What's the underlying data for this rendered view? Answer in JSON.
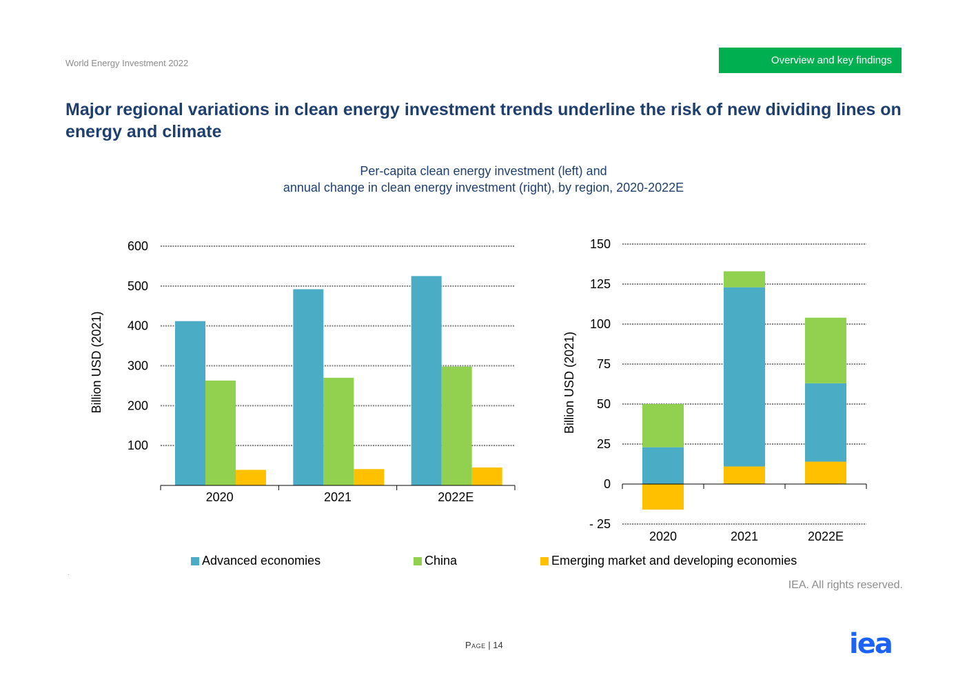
{
  "header": {
    "report_name": "World Energy Investment 2022",
    "section_tag": "Overview and key findings",
    "title": "Major regional variations in clean energy investment trends underline the risk of new dividing lines on energy and climate"
  },
  "colors": {
    "advanced": "#4bacc6",
    "china": "#92d050",
    "emerging": "#ffc000",
    "tag_bg": "#00b050",
    "title": "#1f3f6f",
    "logo": "#1b63f6"
  },
  "figure": {
    "subtitle_line1": "Per-capita clean energy investment (left) and",
    "subtitle_line2": "annual change in clean energy investment (right), by region, 2020-2022E"
  },
  "legend": [
    {
      "label": "Advanced economies",
      "color": "#4bacc6"
    },
    {
      "label": "China",
      "color": "#92d050"
    },
    {
      "label": "Emerging market and developing economies",
      "color": "#ffc000"
    }
  ],
  "chart_data": [
    {
      "type": "bar",
      "title": "Per-capita clean energy investment",
      "ylabel": "Billion USD (2021)",
      "xlabel": "",
      "categories": [
        "2020",
        "2021",
        "2022E"
      ],
      "ylim": [
        0,
        600
      ],
      "yticks": [
        100,
        200,
        300,
        400,
        500,
        600
      ],
      "ytick_labels": [
        "100",
        "200",
        "300",
        "400",
        "500",
        "600"
      ],
      "grid": true,
      "series": [
        {
          "name": "Advanced economies",
          "values": [
            412,
            492,
            525
          ]
        },
        {
          "name": "China",
          "values": [
            263,
            270,
            298
          ]
        },
        {
          "name": "Emerging market and developing economies",
          "values": [
            39,
            41,
            45
          ]
        }
      ]
    },
    {
      "type": "bar",
      "stacked": true,
      "title": "Annual change in clean energy investment",
      "ylabel": "Billion USD (2021)",
      "xlabel": "",
      "categories": [
        "2020",
        "2021",
        "2022E"
      ],
      "ylim": [
        -25,
        150
      ],
      "yticks": [
        -25,
        0,
        25,
        50,
        75,
        100,
        125,
        150
      ],
      "ytick_labels": [
        "- 25",
        "0",
        "25",
        "50",
        "75",
        "100",
        "125",
        "150"
      ],
      "grid": true,
      "series": [
        {
          "name": "Emerging market and developing economies",
          "values": [
            -16,
            11,
            14
          ]
        },
        {
          "name": "Advanced economies",
          "values": [
            23,
            112,
            49
          ]
        },
        {
          "name": "China",
          "values": [
            27,
            10,
            41
          ]
        }
      ]
    }
  ],
  "footer": {
    "dot": ".",
    "rights": "IEA. All rights reserved.",
    "page_label": "Page",
    "page_sep": " | ",
    "page_number": "14",
    "logo_text": "iea"
  }
}
